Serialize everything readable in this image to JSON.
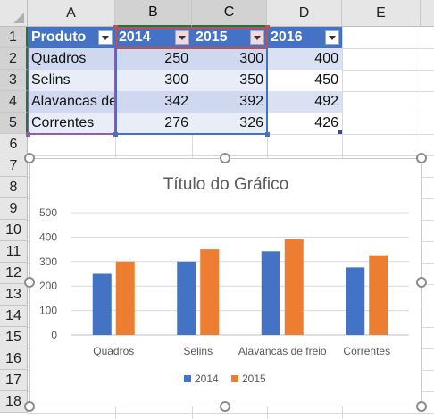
{
  "columns": [
    "A",
    "B",
    "C",
    "D",
    "E"
  ],
  "rows": [
    "1",
    "2",
    "3",
    "4",
    "5",
    "6",
    "7",
    "8",
    "9",
    "10",
    "11",
    "12",
    "13",
    "14",
    "15",
    "16",
    "17",
    "18"
  ],
  "table": {
    "headers": [
      "Produto",
      "2014",
      "2015",
      "2016"
    ],
    "data": [
      [
        "Quadros",
        "250",
        "300",
        "400"
      ],
      [
        "Selins",
        "300",
        "350",
        "450"
      ],
      [
        "Alavancas de",
        "342",
        "392",
        "492"
      ],
      [
        "Correntes",
        "276",
        "326",
        "426"
      ]
    ]
  },
  "colors": {
    "series_2014": "#4472c4",
    "series_2015": "#ed7d31",
    "table_header": "#4472c4"
  },
  "chart_data": {
    "type": "bar",
    "title": "Título do Gráfico",
    "categories": [
      "Quadros",
      "Selins",
      "Alavancas de freio",
      "Correntes"
    ],
    "series": [
      {
        "name": "2014",
        "values": [
          250,
          300,
          342,
          276
        ]
      },
      {
        "name": "2015",
        "values": [
          300,
          350,
          392,
          326
        ]
      }
    ],
    "ylim": [
      0,
      500
    ],
    "yticks": [
      "0",
      "100",
      "200",
      "300",
      "400",
      "500"
    ],
    "grid": true,
    "legend": "bottom"
  }
}
